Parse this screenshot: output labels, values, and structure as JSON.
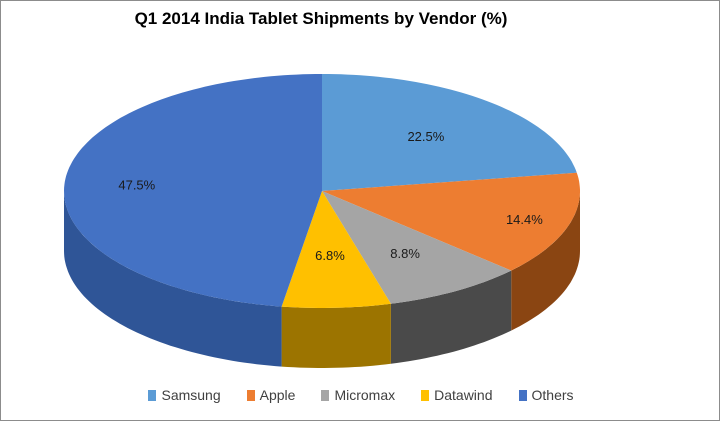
{
  "chart_data": {
    "type": "pie",
    "variant": "3d",
    "title": "Q1 2014 India  Tablet Shipments by Vendor (%)",
    "categories": [
      "Samsung",
      "Apple",
      "Micromax",
      "Datawind",
      "Others"
    ],
    "values": [
      22.5,
      14.4,
      8.8,
      6.8,
      47.5
    ],
    "labels": [
      "22.5%",
      "14.4%",
      "8.8%",
      "6.8%",
      "47.5%"
    ],
    "colors": [
      "#5B9BD5",
      "#ED7D31",
      "#A5A5A5",
      "#FFC000",
      "#4472C4"
    ],
    "side_colors": [
      "#41719C",
      "#8A4512",
      "#4A4A4A",
      "#9C7400",
      "#2F5597"
    ],
    "legend_position": "bottom"
  }
}
